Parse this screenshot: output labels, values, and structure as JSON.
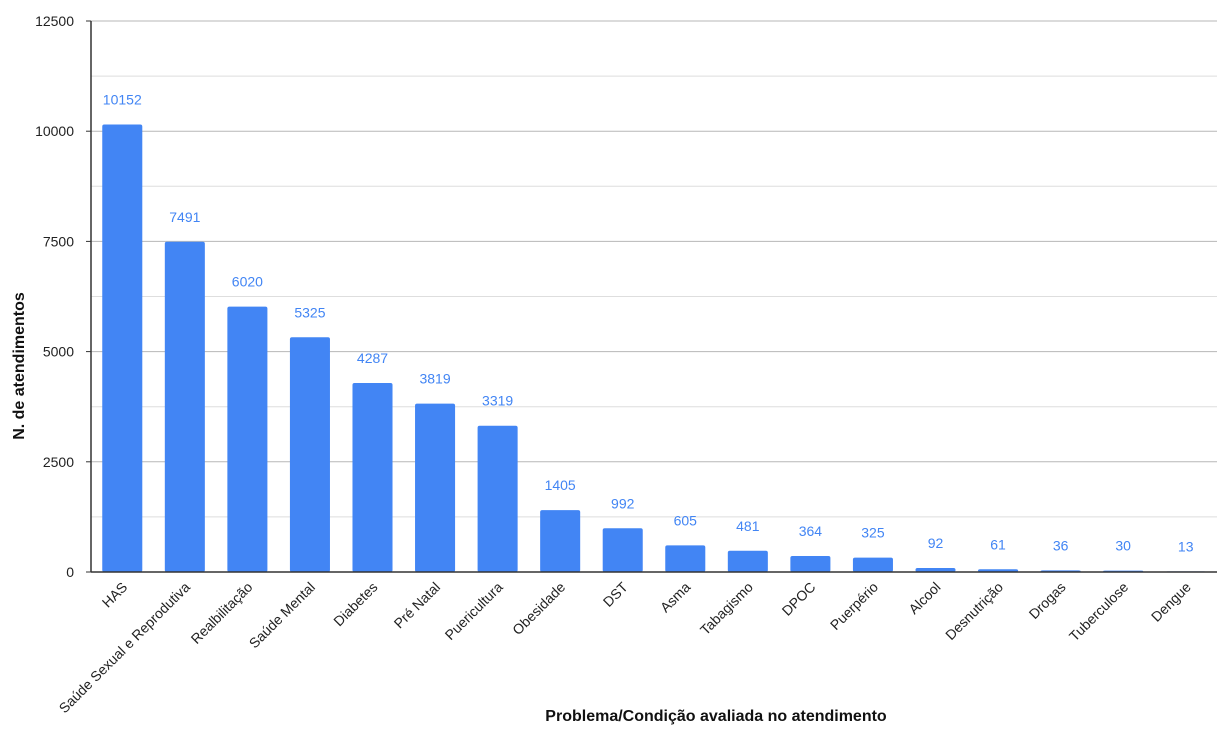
{
  "chart_data": {
    "type": "bar",
    "xlabel": "Problema/Condição avaliada no atendimento",
    "ylabel": "N. de atendimentos",
    "ylim": [
      0,
      12500
    ],
    "yticks": [
      0,
      2500,
      5000,
      7500,
      10000,
      12500
    ],
    "grid": true,
    "minor_grid": true,
    "legend": "none",
    "bar_color": "#4285f4",
    "label_color": "#4285f4",
    "categories": [
      "HAS",
      "Saúde Sexual e Reprodutiva",
      "Realbilitação",
      "Saúde Mental",
      "Diabetes",
      "Pré Natal",
      "Puericultura",
      "Obesidade",
      "DST",
      "Asma",
      "Tabagismo",
      "DPOC",
      "Puerpério",
      "Alcool",
      "Desnutrição",
      "Drogas",
      "Tuberculose",
      "Dengue"
    ],
    "values": [
      10152,
      7491,
      6020,
      5325,
      4287,
      3819,
      3319,
      1405,
      992,
      605,
      481,
      364,
      325,
      92,
      61,
      36,
      30,
      13
    ]
  }
}
